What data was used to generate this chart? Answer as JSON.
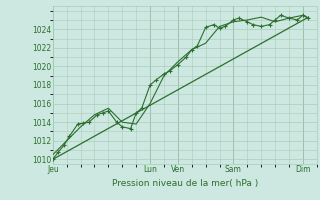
{
  "xlabel": "Pression niveau de la mer( hPa )",
  "bg_color": "#cce8e0",
  "grid_color": "#aaccbb",
  "line_color": "#2d6e2d",
  "text_color": "#2d6e2d",
  "ylim": [
    1009.5,
    1026.5
  ],
  "yticks": [
    1010,
    1012,
    1014,
    1016,
    1018,
    1020,
    1022,
    1024
  ],
  "day_labels": [
    "Jeu",
    "Lun",
    "Ven",
    "Sam",
    "Dim"
  ],
  "day_positions": [
    0.0,
    3.5,
    4.5,
    6.5,
    9.0
  ],
  "xlim": [
    0.0,
    9.5
  ],
  "series1_x": [
    0.0,
    0.2,
    0.4,
    0.6,
    0.9,
    1.1,
    1.3,
    1.6,
    1.8,
    2.0,
    2.3,
    2.5,
    2.8,
    3.0,
    3.2,
    3.5,
    3.7,
    4.0,
    4.2,
    4.5,
    4.8,
    5.0,
    5.2,
    5.5,
    5.8,
    6.0,
    6.2,
    6.5,
    6.7,
    7.0,
    7.2,
    7.5,
    7.8,
    8.0,
    8.2,
    8.5,
    8.8,
    9.0,
    9.2
  ],
  "series1_y": [
    1010.0,
    1010.8,
    1011.5,
    1012.5,
    1013.8,
    1013.9,
    1014.0,
    1014.8,
    1015.0,
    1015.2,
    1014.0,
    1013.5,
    1013.3,
    1015.0,
    1015.5,
    1018.0,
    1018.5,
    1019.2,
    1019.5,
    1020.2,
    1021.0,
    1021.8,
    1022.2,
    1024.2,
    1024.5,
    1024.1,
    1024.3,
    1025.0,
    1025.2,
    1024.8,
    1024.5,
    1024.3,
    1024.5,
    1025.0,
    1025.5,
    1025.2,
    1025.0,
    1025.5,
    1025.2
  ],
  "series2_x": [
    0.0,
    0.5,
    1.0,
    1.5,
    2.0,
    2.5,
    3.0,
    3.5,
    4.0,
    4.5,
    5.0,
    5.5,
    6.0,
    6.5,
    7.0,
    7.5,
    8.0,
    8.5,
    9.0,
    9.2
  ],
  "series2_y": [
    1010.5,
    1012.0,
    1013.5,
    1014.8,
    1015.5,
    1014.0,
    1013.8,
    1016.0,
    1019.0,
    1020.5,
    1021.8,
    1022.5,
    1024.3,
    1024.8,
    1025.0,
    1025.3,
    1024.8,
    1025.2,
    1025.5,
    1025.2
  ],
  "trend_x": [
    0.0,
    9.2
  ],
  "trend_y": [
    1010.0,
    1025.3
  ]
}
